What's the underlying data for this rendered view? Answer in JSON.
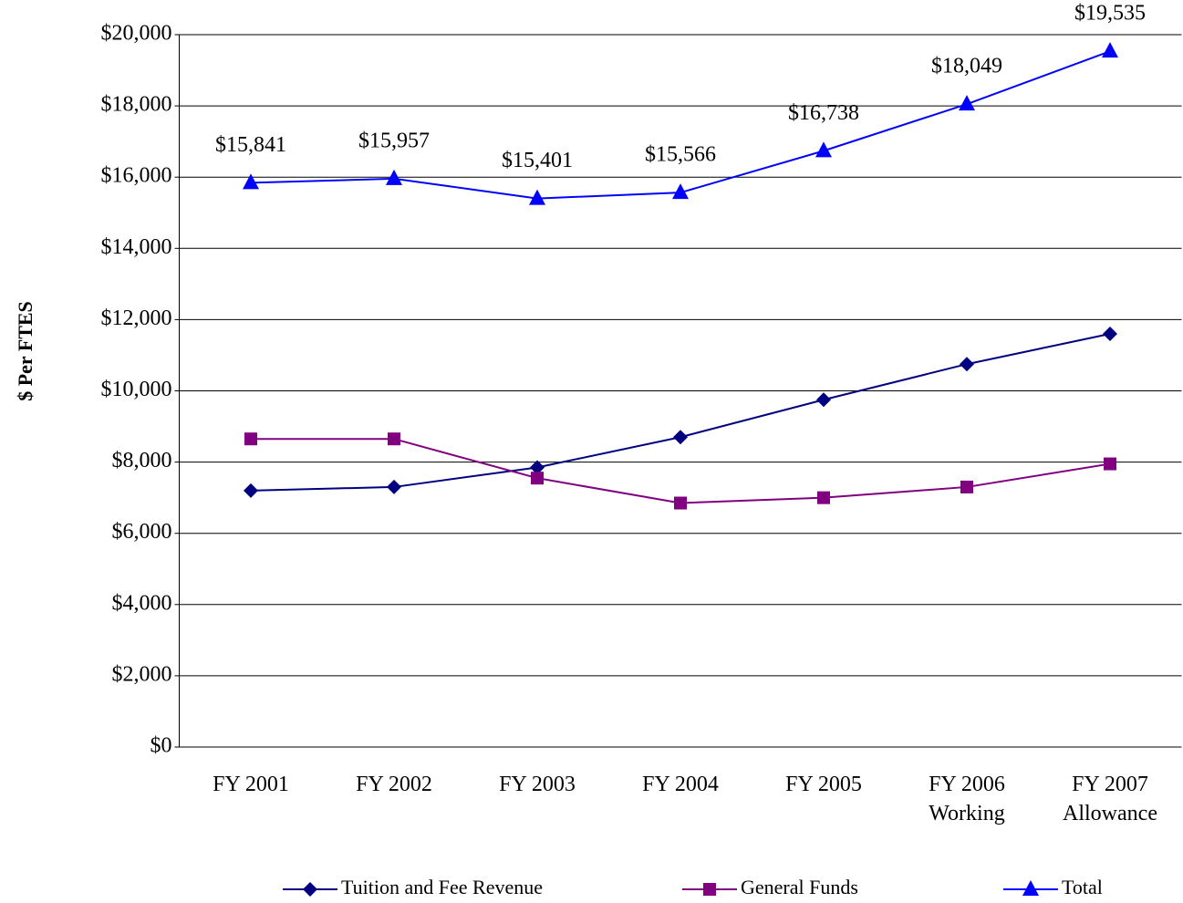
{
  "chart_data": {
    "type": "line",
    "ylabel": "$ Per FTES",
    "categories": [
      "FY 2001",
      "FY 2002",
      "FY 2003",
      "FY 2004",
      "FY 2005",
      "FY 2006\nWorking",
      "FY 2007\nAllowance"
    ],
    "series": [
      {
        "name": "Tuition and Fee Revenue",
        "color": "#000080",
        "marker": "diamond",
        "values": [
          7200,
          7300,
          7850,
          8700,
          9750,
          10750,
          11600
        ]
      },
      {
        "name": "General Funds",
        "color": "#800080",
        "marker": "square",
        "values": [
          8650,
          8650,
          7550,
          6850,
          7000,
          7300,
          7950
        ]
      },
      {
        "name": "Total",
        "color": "#0000ff",
        "marker": "triangle",
        "values": [
          15841,
          15957,
          15401,
          15566,
          16738,
          18049,
          19535
        ],
        "value_labels": [
          "$15,841",
          "$15,957",
          "$15,401",
          "$15,566",
          "$16,738",
          "$18,049",
          "$19,535"
        ]
      }
    ],
    "ylim": [
      0,
      20000
    ],
    "yticks": [
      {
        "value": 0,
        "label": "$0"
      },
      {
        "value": 2000,
        "label": "$2,000"
      },
      {
        "value": 4000,
        "label": "$4,000"
      },
      {
        "value": 6000,
        "label": "$6,000"
      },
      {
        "value": 8000,
        "label": "$8,000"
      },
      {
        "value": 10000,
        "label": "$10,000"
      },
      {
        "value": 12000,
        "label": "$12,000"
      },
      {
        "value": 14000,
        "label": "$14,000"
      },
      {
        "value": 16000,
        "label": "$16,000"
      },
      {
        "value": 18000,
        "label": "$18,000"
      },
      {
        "value": 20000,
        "label": "$20,000"
      }
    ],
    "grid": true,
    "legend": "bottom"
  }
}
